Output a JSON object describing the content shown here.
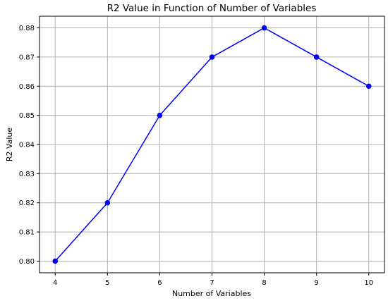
{
  "chart_data": {
    "type": "line",
    "title": "R2 Value in Function of Number of Variables",
    "xlabel": "Number of Variables",
    "ylabel": "R2 Value",
    "x": [
      4,
      5,
      6,
      7,
      8,
      9,
      10
    ],
    "series": [
      {
        "values": [
          0.8,
          0.82,
          0.85,
          0.87,
          0.88,
          0.87,
          0.86
        ],
        "color": "#0000ff",
        "marker": "circle"
      }
    ],
    "xticks": [
      4,
      5,
      6,
      7,
      8,
      9,
      10
    ],
    "xtick_labels": [
      "4",
      "5",
      "6",
      "7",
      "8",
      "9",
      "10"
    ],
    "yticks": [
      0.8,
      0.81,
      0.82,
      0.83,
      0.84,
      0.85,
      0.86,
      0.87,
      0.88
    ],
    "ytick_labels": [
      "0.80",
      "0.81",
      "0.82",
      "0.83",
      "0.84",
      "0.85",
      "0.86",
      "0.87",
      "0.88"
    ],
    "xlim": [
      3.7,
      10.3
    ],
    "ylim": [
      0.796,
      0.884
    ],
    "grid": true,
    "legend": false
  }
}
